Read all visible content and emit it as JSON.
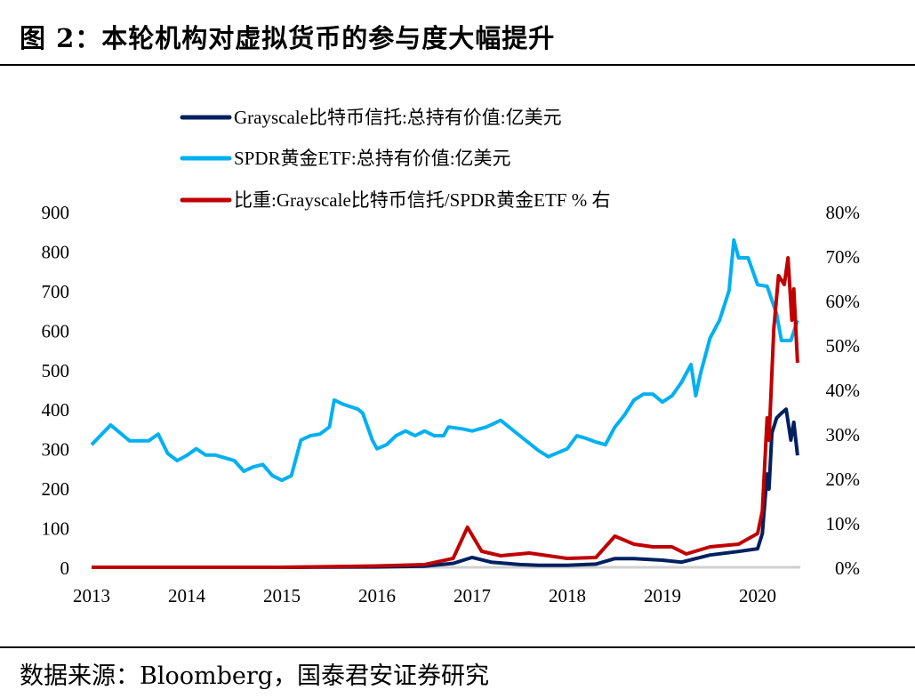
{
  "title": "图 2：本轮机构对虚拟货币的参与度大幅提升",
  "source": "数据来源：Bloomberg，国泰君安证券研究",
  "chart_data": {
    "type": "line",
    "title": "",
    "legend_placement": "top-center",
    "grid": false,
    "x_ticks": [
      "2013",
      "2014",
      "2015",
      "2016",
      "2017",
      "2018",
      "2019",
      "2020"
    ],
    "xlim": [
      2013,
      2020.45
    ],
    "y_left": {
      "ticks": [
        "0",
        "100",
        "200",
        "300",
        "400",
        "500",
        "600",
        "700",
        "800",
        "900"
      ],
      "ylim": [
        0,
        900
      ]
    },
    "y_right": {
      "ticks": [
        "0%",
        "10%",
        "20%",
        "30%",
        "40%",
        "50%",
        "60%",
        "70%",
        "80%"
      ],
      "ylim": [
        0,
        80
      ]
    },
    "series": [
      {
        "name": "Grayscale比特币信托:总持有价值:亿美元",
        "axis": "left",
        "color": "#002060",
        "x": [
          2013,
          2014,
          2015,
          2016,
          2016.5,
          2016.8,
          2017.0,
          2017.2,
          2017.5,
          2017.7,
          2018.0,
          2018.3,
          2018.5,
          2018.7,
          2019.0,
          2019.2,
          2019.5,
          2019.8,
          2020.0,
          2020.05,
          2020.1,
          2020.12,
          2020.15,
          2020.2,
          2020.25,
          2020.3,
          2020.35,
          2020.38,
          2020.42
        ],
        "y": [
          0,
          0,
          0,
          1,
          3,
          10,
          25,
          13,
          7,
          5,
          5,
          8,
          22,
          22,
          18,
          13,
          31,
          40,
          47,
          85,
          236,
          198,
          340,
          378,
          390,
          400,
          322,
          367,
          283
        ]
      },
      {
        "name": "SPDR黄金ETF:总持有价值:亿美元",
        "axis": "left",
        "color": "#00B0F0",
        "x": [
          2013.0,
          2013.2,
          2013.4,
          2013.6,
          2013.7,
          2013.8,
          2013.9,
          2014.0,
          2014.1,
          2014.2,
          2014.3,
          2014.4,
          2014.5,
          2014.6,
          2014.7,
          2014.8,
          2014.9,
          2015.0,
          2015.1,
          2015.2,
          2015.3,
          2015.4,
          2015.5,
          2015.55,
          2015.65,
          2015.8,
          2015.85,
          2015.95,
          2016.0,
          2016.1,
          2016.2,
          2016.3,
          2016.4,
          2016.5,
          2016.6,
          2016.7,
          2016.75,
          2016.9,
          2017.0,
          2017.15,
          2017.3,
          2017.5,
          2017.7,
          2017.8,
          2018.0,
          2018.1,
          2018.2,
          2018.3,
          2018.4,
          2018.5,
          2018.6,
          2018.7,
          2018.8,
          2018.9,
          2019.0,
          2019.1,
          2019.2,
          2019.3,
          2019.35,
          2019.4,
          2019.5,
          2019.6,
          2019.7,
          2019.75,
          2019.8,
          2019.9,
          2020.0,
          2020.1,
          2020.2,
          2020.25,
          2020.35,
          2020.42
        ],
        "y": [
          310,
          360,
          320,
          320,
          337,
          288,
          270,
          283,
          300,
          284,
          284,
          277,
          270,
          243,
          254,
          260,
          232,
          220,
          232,
          322,
          333,
          337,
          355,
          423,
          412,
          400,
          390,
          322,
          300,
          310,
          333,
          345,
          333,
          345,
          333,
          333,
          355,
          350,
          345,
          355,
          372,
          333,
          295,
          280,
          300,
          333,
          326,
          317,
          310,
          355,
          385,
          423,
          438,
          438,
          418,
          434,
          468,
          513,
          434,
          490,
          580,
          625,
          700,
          828,
          783,
          783,
          715,
          711,
          641,
          574,
          574,
          625
        ]
      },
      {
        "name": "比重:Grayscale比特币信托/SPDR黄金ETF % 右",
        "axis": "right",
        "color": "#C00000",
        "x": [
          2013,
          2014,
          2015,
          2016,
          2016.5,
          2016.8,
          2016.95,
          2017.1,
          2017.3,
          2017.6,
          2017.8,
          2018.0,
          2018.3,
          2018.5,
          2018.7,
          2018.9,
          2019.1,
          2019.25,
          2019.5,
          2019.8,
          2020.0,
          2020.05,
          2020.1,
          2020.12,
          2020.17,
          2020.22,
          2020.28,
          2020.32,
          2020.36,
          2020.38,
          2020.42
        ],
        "y": [
          0,
          0,
          0,
          0.3,
          0.6,
          2,
          9,
          3.6,
          2.6,
          3.2,
          2.6,
          2,
          2.2,
          7,
          5.2,
          4.6,
          4.6,
          3,
          4.6,
          5.2,
          7.6,
          12.6,
          33.6,
          28.6,
          53.6,
          65.6,
          63.6,
          69.6,
          55.6,
          62.6,
          46
        ]
      }
    ]
  }
}
